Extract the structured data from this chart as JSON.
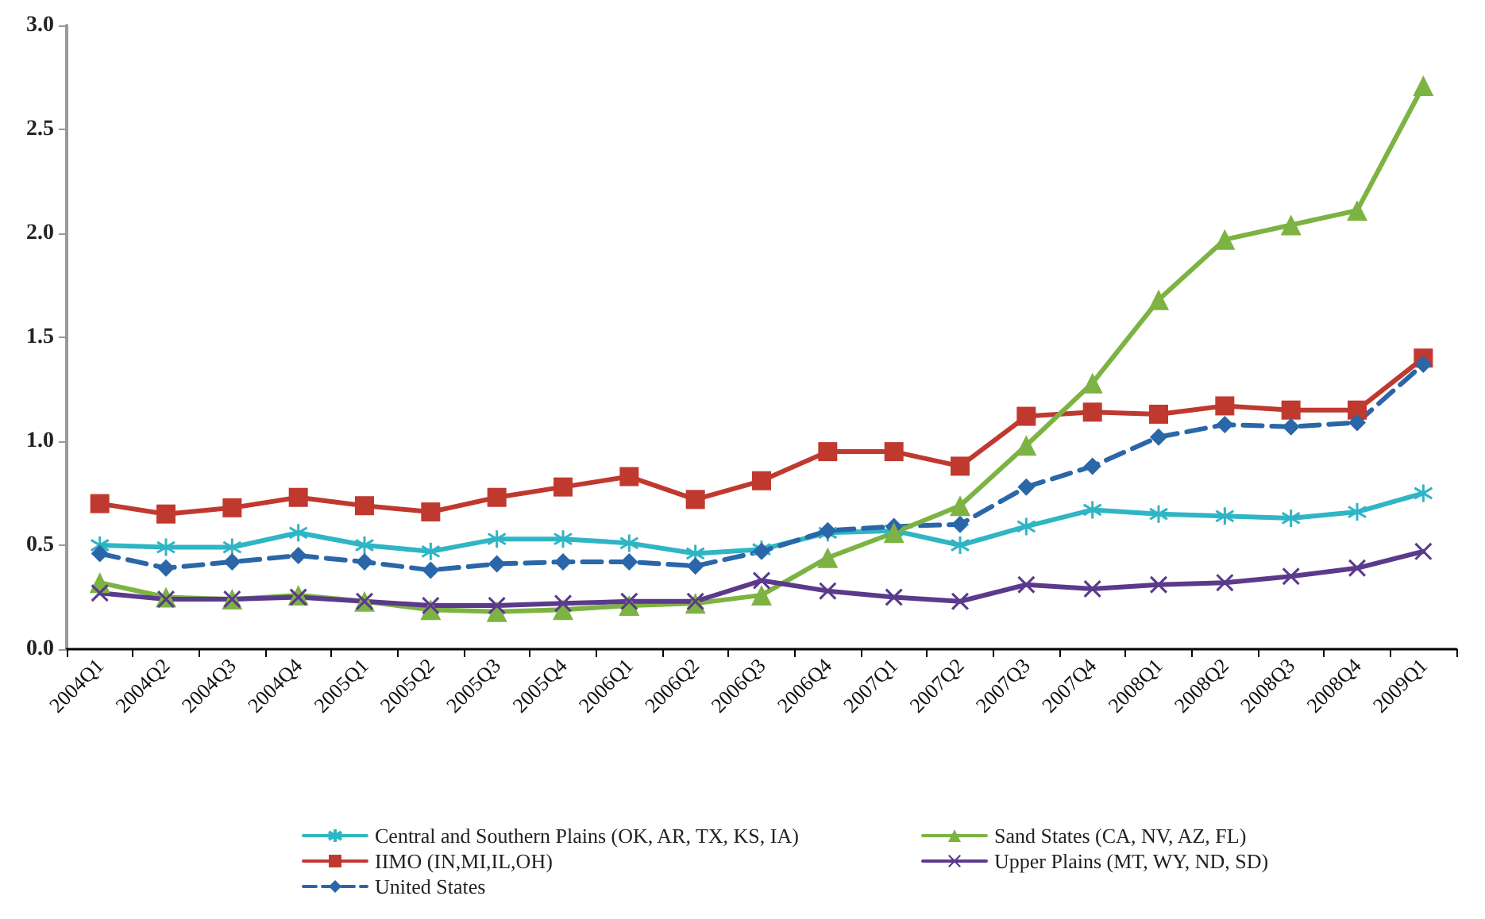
{
  "chart_data": {
    "type": "line",
    "categories": [
      "2004Q1",
      "2004Q2",
      "2004Q3",
      "2004Q4",
      "2005Q1",
      "2005Q2",
      "2005Q3",
      "2005Q4",
      "2006Q1",
      "2006Q2",
      "2006Q3",
      "2006Q4",
      "2007Q1",
      "2007Q2",
      "2007Q3",
      "2007Q4",
      "2008Q1",
      "2008Q2",
      "2008Q3",
      "2008Q4",
      "2009Q1"
    ],
    "series": [
      {
        "name": "Central and Southern Plains (OK, AR, TX, KS, IA)",
        "color": "#2fb5c4",
        "marker": "star",
        "line_style": "solid",
        "values": [
          0.5,
          0.49,
          0.49,
          0.56,
          0.5,
          0.47,
          0.53,
          0.53,
          0.51,
          0.46,
          0.48,
          0.56,
          0.57,
          0.5,
          0.59,
          0.67,
          0.65,
          0.64,
          0.63,
          0.66,
          0.75
        ]
      },
      {
        "name": "IIMO (IN,MI,IL,OH)",
        "color": "#c0392f",
        "marker": "square",
        "line_style": "solid",
        "values": [
          0.7,
          0.65,
          0.68,
          0.73,
          0.69,
          0.66,
          0.73,
          0.78,
          0.83,
          0.72,
          0.81,
          0.95,
          0.95,
          0.88,
          1.12,
          1.14,
          1.13,
          1.17,
          1.15,
          1.15,
          1.4
        ]
      },
      {
        "name": "United States",
        "color": "#2a66a8",
        "marker": "diamond",
        "line_style": "dashed",
        "values": [
          0.46,
          0.39,
          0.42,
          0.45,
          0.42,
          0.38,
          0.41,
          0.42,
          0.42,
          0.4,
          0.47,
          0.57,
          0.59,
          0.6,
          0.78,
          0.88,
          1.02,
          1.08,
          1.07,
          1.09,
          1.37
        ]
      },
      {
        "name": "Sand States (CA, NV, AZ, FL)",
        "color": "#7cb342",
        "marker": "triangle",
        "line_style": "solid",
        "values": [
          0.32,
          0.25,
          0.24,
          0.26,
          0.23,
          0.19,
          0.18,
          0.19,
          0.21,
          0.22,
          0.26,
          0.44,
          0.56,
          0.69,
          0.98,
          1.28,
          1.68,
          1.97,
          2.04,
          2.11,
          2.71
        ]
      },
      {
        "name": "Upper Plains (MT, WY, ND, SD)",
        "color": "#5b3a8c",
        "marker": "cross",
        "line_style": "solid",
        "values": [
          0.27,
          0.24,
          0.24,
          0.25,
          0.23,
          0.21,
          0.21,
          0.22,
          0.23,
          0.23,
          0.33,
          0.28,
          0.25,
          0.23,
          0.31,
          0.29,
          0.31,
          0.32,
          0.35,
          0.39,
          0.47
        ]
      }
    ],
    "ylim": [
      0,
      3.0
    ],
    "yticks": [
      {
        "value": 0,
        "label": "0.0"
      },
      {
        "value": 0.5,
        "label": "0.5"
      },
      {
        "value": 1,
        "label": "1.0"
      },
      {
        "value": 1.5,
        "label": "1.5"
      },
      {
        "value": 2,
        "label": "2.0"
      },
      {
        "value": 2.5,
        "label": "2.5"
      },
      {
        "value": 3,
        "label": "3.0"
      }
    ],
    "grid": false,
    "legend": "bottom"
  }
}
